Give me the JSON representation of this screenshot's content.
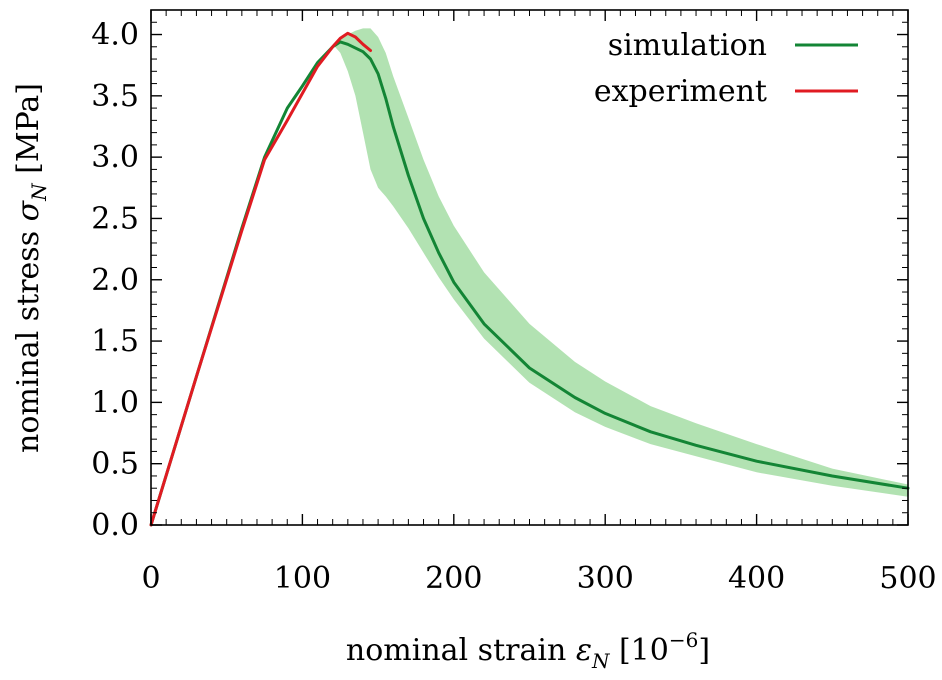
{
  "chart_data": {
    "type": "line",
    "xlabel": "nominal strain ε_N [10^−6]",
    "xlabel_parts": {
      "main": "nominal strain ",
      "symbol": "ε",
      "sub": "N",
      "bracket_open": " [10",
      "exp": "−6",
      "bracket_close": "]"
    },
    "ylabel": "nominal stress σ_N [MPa]",
    "ylabel_parts": {
      "main": "nominal stress ",
      "symbol": "σ",
      "sub": "N",
      "unit": " [MPa]"
    },
    "xlim": [
      0,
      500
    ],
    "ylim": [
      0,
      4.2
    ],
    "x_ticks": [
      0,
      100,
      200,
      300,
      400,
      500
    ],
    "x_tick_labels": [
      "0",
      "100",
      "200",
      "300",
      "400",
      "500"
    ],
    "y_ticks": [
      0.0,
      0.5,
      1.0,
      1.5,
      2.0,
      2.5,
      3.0,
      3.5,
      4.0
    ],
    "y_tick_labels": [
      "0.0",
      "0.5",
      "1.0",
      "1.5",
      "2.0",
      "2.5",
      "3.0",
      "3.5",
      "4.0"
    ],
    "legend_position": "top-right",
    "grid": false,
    "series": [
      {
        "name": "simulation",
        "color": "#138535",
        "x": [
          0,
          30,
          60,
          75,
          90,
          100,
          110,
          120,
          125,
          130,
          140,
          145,
          150,
          155,
          160,
          170,
          180,
          190,
          200,
          220,
          250,
          280,
          300,
          330,
          360,
          400,
          450,
          500
        ],
        "y": [
          0.0,
          1.21,
          2.42,
          3.0,
          3.4,
          3.58,
          3.77,
          3.9,
          3.94,
          3.92,
          3.86,
          3.8,
          3.68,
          3.48,
          3.25,
          2.85,
          2.5,
          2.22,
          1.98,
          1.64,
          1.28,
          1.04,
          0.91,
          0.76,
          0.65,
          0.52,
          0.4,
          0.3
        ]
      },
      {
        "name": "experiment",
        "color": "#e01b22",
        "x": [
          0,
          30,
          60,
          75,
          90,
          100,
          110,
          120,
          125,
          130,
          135,
          140,
          145
        ],
        "y": [
          0.0,
          1.21,
          2.4,
          2.98,
          3.3,
          3.52,
          3.74,
          3.9,
          3.97,
          4.01,
          3.98,
          3.92,
          3.87
        ]
      }
    ],
    "band": {
      "color": "#98d898",
      "x": [
        120,
        125,
        130,
        135,
        140,
        145,
        150,
        155,
        160,
        170,
        180,
        190,
        200,
        220,
        250,
        280,
        300,
        330,
        360,
        400,
        450,
        500
      ],
      "upper": [
        3.92,
        3.97,
        4.0,
        4.03,
        4.05,
        4.05,
        3.98,
        3.85,
        3.66,
        3.32,
        2.98,
        2.68,
        2.44,
        2.06,
        1.64,
        1.33,
        1.17,
        0.97,
        0.83,
        0.66,
        0.46,
        0.33
      ],
      "lower": [
        3.92,
        3.85,
        3.7,
        3.5,
        3.2,
        2.9,
        2.75,
        2.68,
        2.6,
        2.42,
        2.22,
        2.02,
        1.84,
        1.52,
        1.16,
        0.92,
        0.8,
        0.66,
        0.56,
        0.43,
        0.32,
        0.23
      ]
    }
  }
}
